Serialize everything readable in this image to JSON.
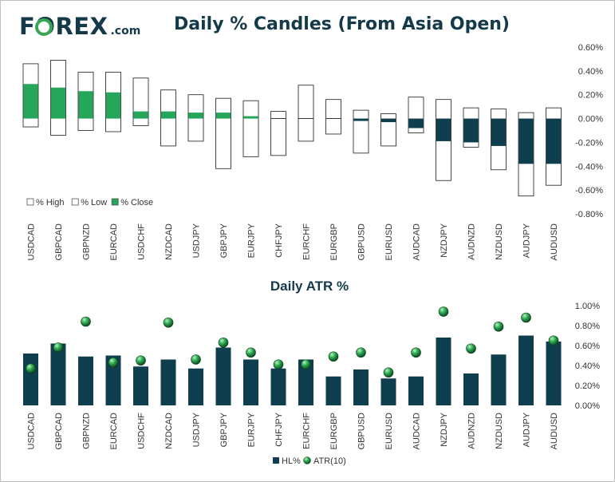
{
  "brand": {
    "name": "FOREX",
    "suffix": ".com",
    "ring_color": "#3aa655",
    "text_color": "#143a4a"
  },
  "colors": {
    "green": "#26a65b",
    "navy": "#0f3e4f",
    "text": "#333333"
  },
  "chart_data": [
    {
      "type": "bar",
      "title": "Daily % Candles (From Asia Open)",
      "categories": [
        "USDCAD",
        "GBPCAD",
        "GBPNZD",
        "EURCAD",
        "USDCHF",
        "NZDCAD",
        "USDJPY",
        "GBPJPY",
        "EURJPY",
        "CHFJPY",
        "EURCHF",
        "EURGBP",
        "GBPUSD",
        "EURUSD",
        "AUDCAD",
        "NZDJPY",
        "AUDNZD",
        "NZDUSD",
        "AUDJPY",
        "AUDUSD"
      ],
      "series": [
        {
          "name": "% High",
          "values": [
            0.46,
            0.49,
            0.39,
            0.39,
            0.34,
            0.24,
            0.2,
            0.17,
            0.15,
            0.06,
            0.28,
            0.16,
            0.07,
            0.04,
            0.18,
            0.16,
            0.09,
            0.08,
            0.05,
            0.09
          ]
        },
        {
          "name": "% Low",
          "values": [
            -0.07,
            -0.14,
            -0.1,
            -0.11,
            -0.06,
            -0.23,
            -0.19,
            -0.42,
            -0.32,
            -0.31,
            -0.19,
            -0.13,
            -0.29,
            -0.23,
            -0.12,
            -0.52,
            -0.24,
            -0.43,
            -0.65,
            -0.56
          ]
        },
        {
          "name": "% Close",
          "values": [
            0.29,
            0.26,
            0.23,
            0.22,
            0.06,
            0.06,
            0.05,
            0.05,
            0.02,
            0.0,
            0.0,
            0.0,
            -0.02,
            -0.03,
            -0.08,
            -0.19,
            -0.2,
            -0.23,
            -0.38,
            -0.38
          ]
        }
      ],
      "ylim": [
        -0.8,
        0.6
      ],
      "yticks": [
        "0.60%",
        "0.40%",
        "0.20%",
        "0.00%",
        "-0.20%",
        "-0.40%",
        "-0.60%",
        "-0.80%"
      ],
      "legend": [
        "% High",
        "% Low",
        "% Close"
      ],
      "legend_position": "bottom-left"
    },
    {
      "type": "bar",
      "title": "Daily ATR %",
      "categories": [
        "USDCAD",
        "GBPCAD",
        "GBPNZD",
        "EURCAD",
        "USDCHF",
        "NZDCAD",
        "USDJPY",
        "GBPJPY",
        "EURJPY",
        "CHFJPY",
        "EURCHF",
        "EURGBP",
        "GBPUSD",
        "EURUSD",
        "AUDCAD",
        "NZDJPY",
        "AUDNZD",
        "NZDUSD",
        "AUDJPY",
        "AUDUSD"
      ],
      "series": [
        {
          "name": "HL%",
          "values": [
            0.52,
            0.62,
            0.49,
            0.5,
            0.39,
            0.46,
            0.37,
            0.58,
            0.46,
            0.37,
            0.46,
            0.29,
            0.36,
            0.27,
            0.29,
            0.68,
            0.32,
            0.51,
            0.7,
            0.64
          ]
        },
        {
          "name": "ATR(10)",
          "values": [
            0.37,
            0.58,
            0.84,
            0.43,
            0.45,
            0.83,
            0.46,
            0.63,
            0.53,
            0.41,
            0.41,
            0.49,
            0.53,
            0.33,
            0.53,
            0.94,
            0.57,
            0.79,
            0.88,
            0.65
          ]
        }
      ],
      "ylim": [
        0,
        1.0
      ],
      "yticks": [
        "1.00%",
        "0.80%",
        "0.60%",
        "0.40%",
        "0.20%",
        "0.00%"
      ],
      "legend": [
        "HL%",
        "ATR(10)"
      ],
      "legend_position": "bottom-center"
    }
  ]
}
